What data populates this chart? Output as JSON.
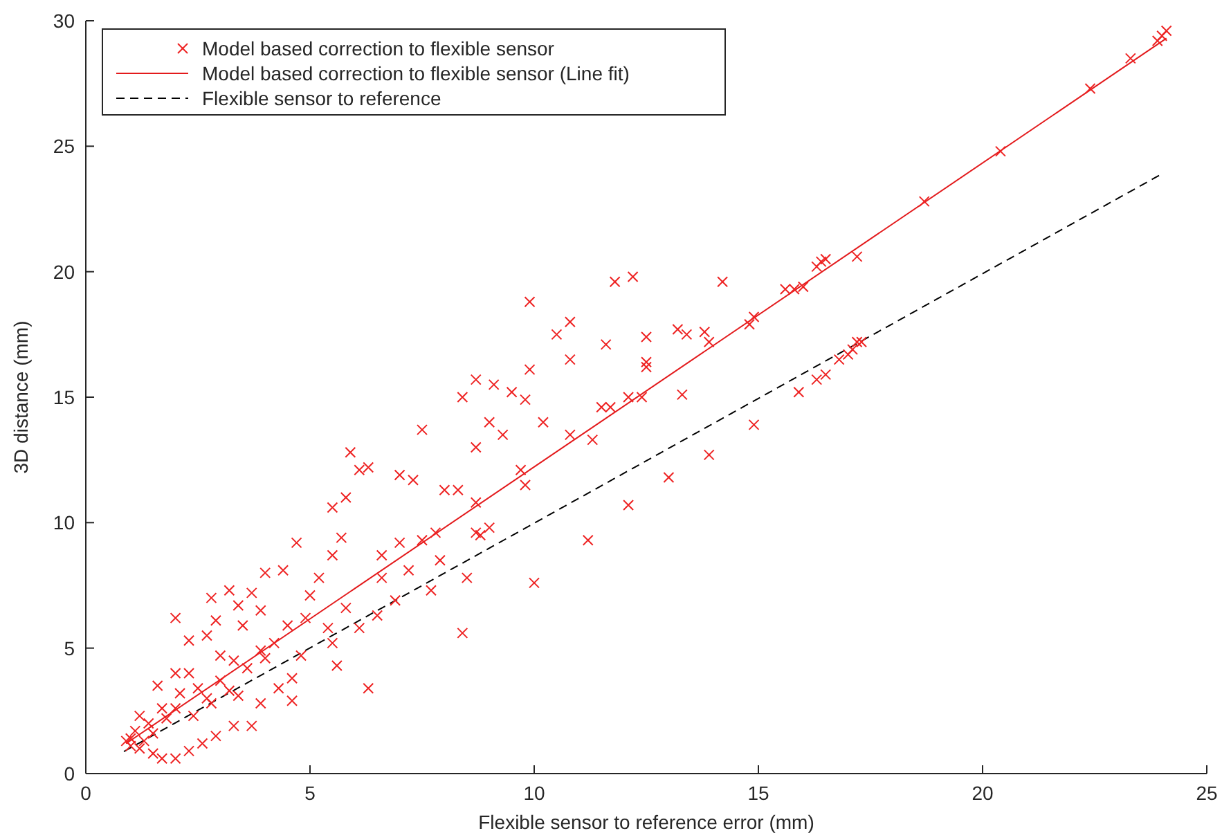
{
  "chart_data": {
    "type": "scatter",
    "xlabel": "Flexible sensor to reference error (mm)",
    "ylabel": "3D distance (mm)",
    "xlim": [
      0,
      25
    ],
    "ylim": [
      0,
      30
    ],
    "xticks": [
      0,
      5,
      10,
      15,
      20,
      25
    ],
    "yticks": [
      0,
      5,
      10,
      15,
      20,
      25,
      30
    ],
    "grid": false,
    "legend": "top left",
    "series": [
      {
        "name": "Model based correction to flexible sensor",
        "marker": "cross",
        "color": "#ee2222",
        "x": [
          24.1,
          24.0,
          23.9,
          23.3,
          22.4,
          20.4,
          18.7,
          17.2,
          16.5,
          16.4,
          16.3,
          16.0,
          15.8,
          15.6,
          14.9,
          14.8,
          14.2,
          12.2,
          11.8,
          9.9,
          13.2,
          13.4,
          13.8,
          13.9,
          12.5,
          10.5,
          10.8,
          11.6,
          12.5,
          12.5,
          12.4,
          13.3,
          10.8,
          9.9,
          8.7,
          9.1,
          9.5,
          9.8,
          10.2,
          11.5,
          11.7,
          12.1,
          8.4,
          7.5,
          9.0,
          9.3,
          10.8,
          11.3,
          8.7,
          9.7,
          9.8,
          11.2,
          13.0,
          13.9,
          14.9,
          12.1,
          10.0,
          15.9,
          16.3,
          16.5,
          16.8,
          17.0,
          17.2,
          17.3,
          17.1,
          8.4,
          6.3,
          5.9,
          6.1,
          6.3,
          5.8,
          7.0,
          7.3,
          8.0,
          8.3,
          8.7,
          8.7,
          8.8,
          9.0,
          7.8,
          7.5,
          7.0,
          6.6,
          7.9,
          8.5,
          7.7,
          6.9,
          6.5,
          5.5,
          5.7,
          5.5,
          5.2,
          5.0,
          4.9,
          4.7,
          4.4,
          4.0,
          3.7,
          3.9,
          3.4,
          3.5,
          3.2,
          2.8,
          2.9,
          2.0,
          2.3,
          2.7,
          3.0,
          3.3,
          3.6,
          3.9,
          4.2,
          4.5,
          5.4,
          5.6,
          5.5,
          4.3,
          4.6,
          3.9,
          3.7,
          3.2,
          3.0,
          2.8,
          2.5,
          2.3,
          2.1,
          2.0,
          1.8,
          1.6,
          1.7,
          1.5,
          1.4,
          1.2,
          1.1,
          1.0,
          0.9,
          1.0,
          1.2,
          1.5,
          1.7,
          2.0,
          2.3,
          2.6,
          2.9,
          3.3,
          4.0,
          4.8,
          5.8,
          6.1,
          6.6,
          7.2,
          2.4,
          2.7,
          3.4,
          4.6,
          2.0,
          1.3
        ],
        "values": [
          29.6,
          29.4,
          29.2,
          28.5,
          27.3,
          24.8,
          22.8,
          20.6,
          20.5,
          20.4,
          20.2,
          19.4,
          19.3,
          19.3,
          18.2,
          17.9,
          19.6,
          19.8,
          19.6,
          18.8,
          17.7,
          17.5,
          17.6,
          17.2,
          17.4,
          17.5,
          18.0,
          17.1,
          16.2,
          16.4,
          15.0,
          15.1,
          16.5,
          16.1,
          15.7,
          15.5,
          15.2,
          14.9,
          14.0,
          14.6,
          14.6,
          15.0,
          15.0,
          13.7,
          14.0,
          13.5,
          13.5,
          13.3,
          13.0,
          12.1,
          11.5,
          9.3,
          11.8,
          12.7,
          13.9,
          10.7,
          7.6,
          15.2,
          15.7,
          15.9,
          16.5,
          16.7,
          17.2,
          17.2,
          16.9,
          5.6,
          3.4,
          12.8,
          12.1,
          12.2,
          11.0,
          11.9,
          11.7,
          11.3,
          11.3,
          10.8,
          9.6,
          9.5,
          9.8,
          9.6,
          9.3,
          9.2,
          8.7,
          8.5,
          7.8,
          7.3,
          6.9,
          6.3,
          10.6,
          9.4,
          8.7,
          7.8,
          7.1,
          6.2,
          9.2,
          8.1,
          8.0,
          7.2,
          6.5,
          6.7,
          5.9,
          7.3,
          7.0,
          6.1,
          6.2,
          5.3,
          5.5,
          4.7,
          4.5,
          4.2,
          4.9,
          5.2,
          5.9,
          5.8,
          4.3,
          5.2,
          3.4,
          2.9,
          2.8,
          1.9,
          3.3,
          3.7,
          2.8,
          3.4,
          4.0,
          3.2,
          2.6,
          2.2,
          3.5,
          2.6,
          1.6,
          2.0,
          2.3,
          1.7,
          1.4,
          1.3,
          1.1,
          1.0,
          0.8,
          0.6,
          0.6,
          0.9,
          1.2,
          1.5,
          1.9,
          4.6,
          4.7,
          6.6,
          5.8,
          7.8,
          8.1,
          2.3,
          3.0,
          3.1,
          3.8,
          4.0,
          1.3
        ]
      },
      {
        "name": "Model based correction to flexible sensor (Line fit)",
        "type": "line",
        "marker": "none",
        "line_style": "solid",
        "color": "#e31a1c",
        "x": [
          0.9,
          24.1
        ],
        "values": [
          1.2,
          29.3
        ]
      },
      {
        "name": "Flexible sensor to reference",
        "type": "line",
        "marker": "none",
        "line_style": "dashed",
        "color": "#000000",
        "x": [
          0.85,
          24.0
        ],
        "values": [
          0.88,
          23.9
        ]
      }
    ]
  }
}
